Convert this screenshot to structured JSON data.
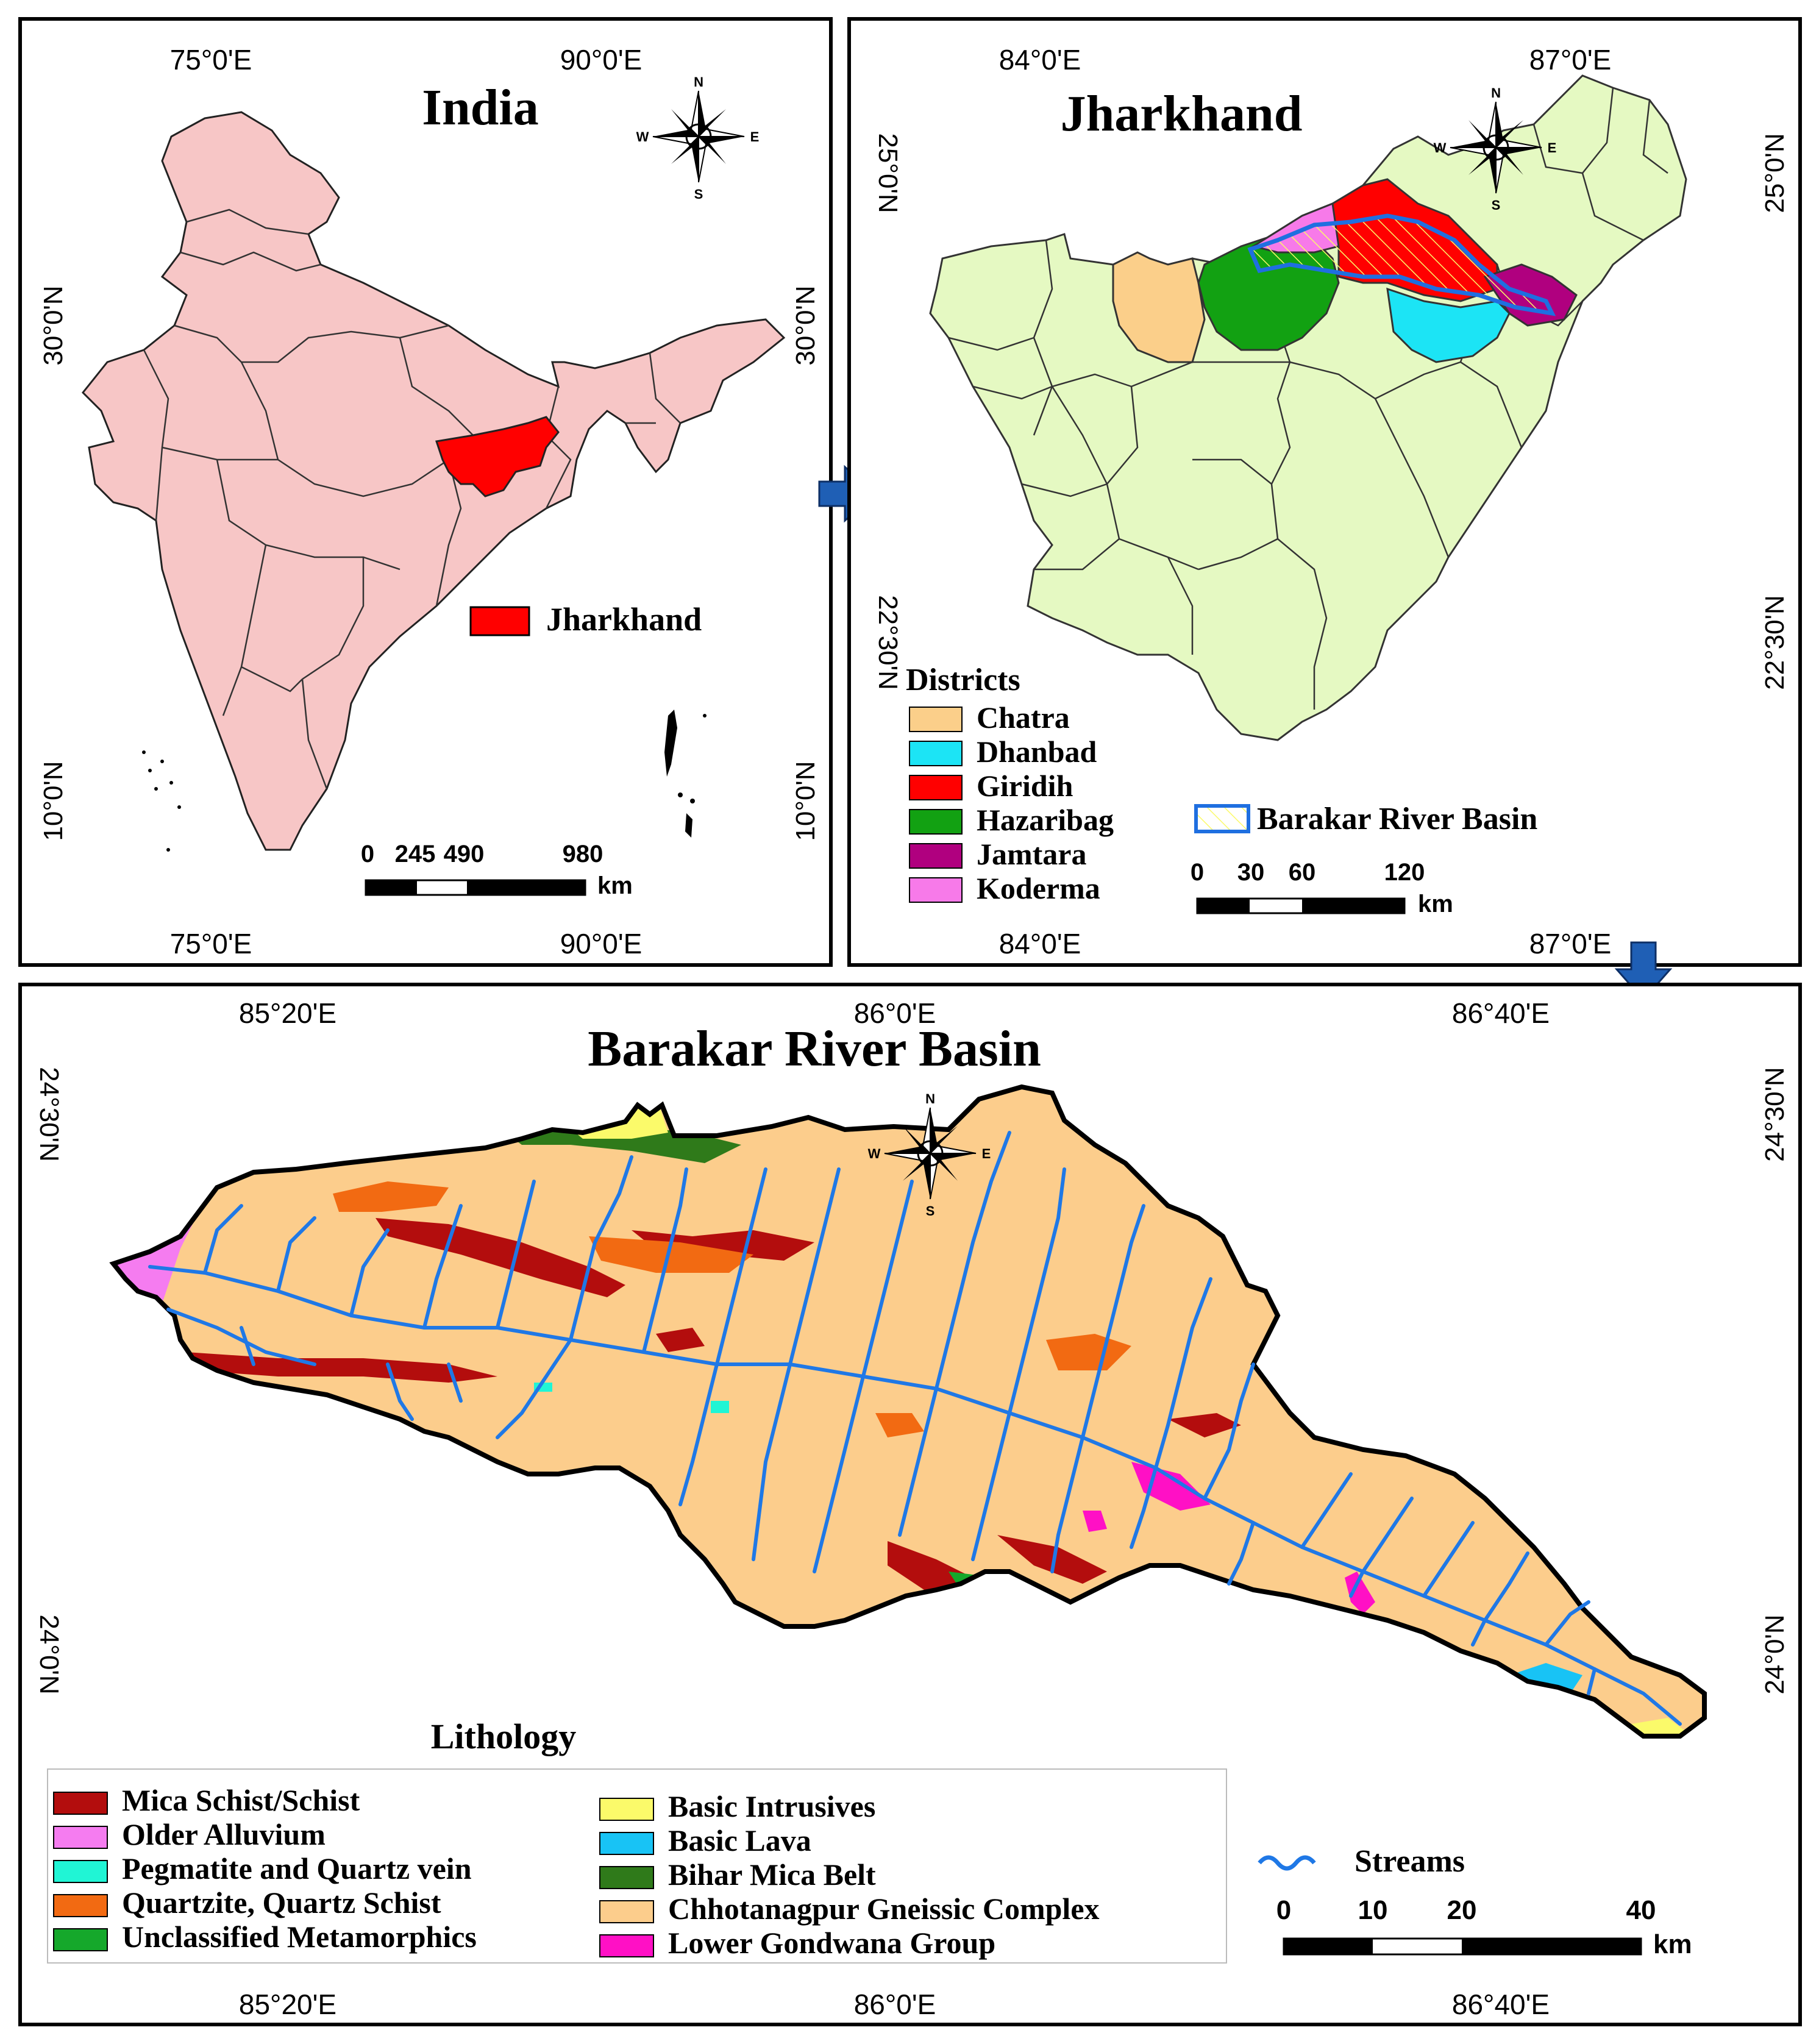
{
  "panel_india": {
    "title": "India",
    "top_lon": [
      "75°0'E",
      "90°0'E"
    ],
    "bottom_lon": [
      "75°0'E",
      "90°0'E"
    ],
    "left_lat": [
      "30°0'N",
      "10°0'N"
    ],
    "right_lat": [
      "30°0'N",
      "10°0'N"
    ],
    "legend_label": "Jharkhand",
    "scale_ticks": [
      "0",
      "245",
      "490",
      "980"
    ],
    "scale_unit": "km",
    "colors": {
      "state_fill": "#f7c6c6",
      "highlight": "#ff0000"
    }
  },
  "panel_jharkhand": {
    "title": "Jharkhand",
    "top_lon": [
      "84°0'E",
      "87°0'E"
    ],
    "bottom_lon": [
      "84°0'E",
      "87°0'E"
    ],
    "left_lat": [
      "25°0'N",
      "22°30'N"
    ],
    "right_lat": [
      "25°0'N",
      "22°30'N"
    ],
    "districts_heading": "Districts",
    "districts": [
      {
        "name": "Chatra",
        "color": "#fbcf8a"
      },
      {
        "name": "Dhanbad",
        "color": "#1ce4f5"
      },
      {
        "name": "Giridih",
        "color": "#ff0000"
      },
      {
        "name": "Hazaribag",
        "color": "#12a112"
      },
      {
        "name": "Jamtara",
        "color": "#b0007f"
      },
      {
        "name": "Koderma",
        "color": "#f77ae9"
      }
    ],
    "basin_label": "Barakar River Basin",
    "scale_ticks": [
      "0",
      "30",
      "60",
      "120"
    ],
    "scale_unit": "km",
    "colors": {
      "other_district": "#e5f9c2",
      "basin_outline": "#1f6fe0"
    }
  },
  "panel_basin": {
    "title": "Barakar River Basin",
    "top_lon": [
      "85°20'E",
      "86°0'E",
      "86°40'E"
    ],
    "bottom_lon": [
      "85°20'E",
      "86°0'E",
      "86°40'E"
    ],
    "left_lat": [
      "24°30'N",
      "24°0'N"
    ],
    "right_lat": [
      "24°30'N",
      "24°0'N"
    ],
    "lithology_heading": "Lithology",
    "lithology_left": [
      {
        "name": "Mica Schist/Schist",
        "color": "#b30d0d"
      },
      {
        "name": "Older Alluvium",
        "color": "#f57cf0"
      },
      {
        "name": "Pegmatite and Quartz vein",
        "color": "#20f5d5"
      },
      {
        "name": "Quartzite, Quartz Schist",
        "color": "#f26a12"
      },
      {
        "name": "Unclassified Metamorphics",
        "color": "#15a82b"
      }
    ],
    "lithology_right": [
      {
        "name": "Basic Intrusives",
        "color": "#fbfa6a"
      },
      {
        "name": "Basic Lava",
        "color": "#18c3f5"
      },
      {
        "name": "Bihar Mica Belt",
        "color": "#2f7a1a"
      },
      {
        "name": "Chhotanagpur Gneissic Complex",
        "color": "#fccd8c"
      },
      {
        "name": "Lower Gondwana Group",
        "color": "#ff10c5"
      }
    ],
    "streams_label": "Streams",
    "scale_ticks": [
      "0",
      "10",
      "20",
      "40"
    ],
    "scale_unit": "km",
    "colors": {
      "stream": "#1f78e6"
    }
  },
  "compass": {
    "n": "N",
    "s": "S",
    "e": "E",
    "w": "W"
  }
}
